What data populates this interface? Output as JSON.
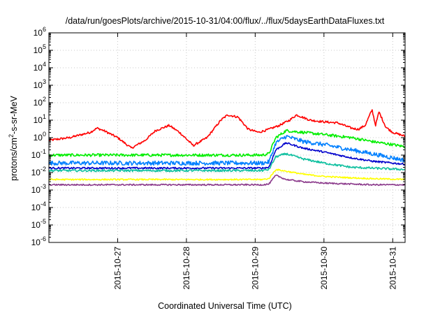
{
  "chart_data": {
    "type": "line",
    "title": "/data/run/goesPlots/archive/2015-10-31/04:00/flux/../flux/5daysEarthDataFluxes.txt",
    "xlabel": "Coordinated Universal Time (UTC)",
    "ylabel_parts": {
      "base": "protons/cm",
      "sup": "2",
      "rest": "-s-sr-MeV"
    },
    "y_scale": "log",
    "ylim": [
      1e-06,
      1000000
    ],
    "xlim": [
      0,
      5.18
    ],
    "grid": true,
    "legend": "none",
    "x_ticks": [
      {
        "x": 1,
        "label": "2015-10-27"
      },
      {
        "x": 2,
        "label": "2015-10-28"
      },
      {
        "x": 3,
        "label": "2015-10-29"
      },
      {
        "x": 4,
        "label": "2015-10-30"
      },
      {
        "x": 5,
        "label": "2015-10-31"
      }
    ],
    "y_ticks": [
      {
        "exp": -6,
        "label": "10",
        "sup": "-6"
      },
      {
        "exp": -5,
        "label": "10",
        "sup": "-5"
      },
      {
        "exp": -4,
        "label": "10",
        "sup": "-4"
      },
      {
        "exp": -3,
        "label": "10",
        "sup": "-3"
      },
      {
        "exp": -2,
        "label": "10",
        "sup": "-2"
      },
      {
        "exp": -1,
        "label": "10",
        "sup": "-1"
      },
      {
        "exp": 0,
        "label": "10",
        "sup": "0"
      },
      {
        "exp": 1,
        "label": "10",
        "sup": "1"
      },
      {
        "exp": 2,
        "label": "10",
        "sup": "2"
      },
      {
        "exp": 3,
        "label": "10",
        "sup": "3"
      },
      {
        "exp": 4,
        "label": "10",
        "sup": "4"
      },
      {
        "exp": 5,
        "label": "10",
        "sup": "5"
      },
      {
        "exp": 6,
        "label": "10",
        "sup": "6"
      }
    ],
    "series": [
      {
        "color": "#ff0000",
        "noise": 0.06,
        "x": [
          0.0,
          0.3,
          0.6,
          0.7,
          0.8,
          1.0,
          1.2,
          1.4,
          1.55,
          1.75,
          1.9,
          2.1,
          2.3,
          2.5,
          2.6,
          2.75,
          2.9,
          3.05,
          3.2,
          3.35,
          3.5,
          3.6,
          3.8,
          4.0,
          4.2,
          4.4,
          4.5,
          4.6,
          4.7,
          4.75,
          4.8,
          4.9,
          5.0,
          5.18
        ],
        "y": [
          0.7,
          1.0,
          2.0,
          3.5,
          2.5,
          1.0,
          0.25,
          0.7,
          2.5,
          5.0,
          2.0,
          0.35,
          1.0,
          10,
          20,
          15,
          3.0,
          2.0,
          3.0,
          5.0,
          10,
          20,
          10,
          8.0,
          7.0,
          3.5,
          3.0,
          5.0,
          40,
          5.0,
          30,
          4.0,
          2.0,
          1.2
        ]
      },
      {
        "color": "#00ee00",
        "noise": 0.08,
        "x": [
          0.0,
          1.0,
          2.0,
          2.5,
          3.0,
          3.1,
          3.2,
          3.3,
          3.45,
          3.7,
          4.0,
          4.4,
          4.7,
          5.0,
          5.18
        ],
        "y": [
          0.1,
          0.1,
          0.1,
          0.1,
          0.1,
          0.1,
          0.12,
          1.0,
          2.5,
          2.0,
          1.5,
          1.0,
          0.6,
          0.4,
          0.3
        ]
      },
      {
        "color": "#0080ff",
        "noise": 0.12,
        "x": [
          0.0,
          1.0,
          2.0,
          2.5,
          3.0,
          3.1,
          3.2,
          3.3,
          3.45,
          3.7,
          4.0,
          4.4,
          4.7,
          5.0,
          5.18
        ],
        "y": [
          0.035,
          0.035,
          0.035,
          0.035,
          0.035,
          0.035,
          0.04,
          0.5,
          1.2,
          0.6,
          0.4,
          0.2,
          0.12,
          0.07,
          0.05
        ]
      },
      {
        "color": "#0000cc",
        "noise": 0.05,
        "x": [
          0.0,
          1.0,
          2.0,
          2.5,
          3.0,
          3.1,
          3.2,
          3.3,
          3.45,
          3.7,
          4.0,
          4.4,
          4.7,
          5.0,
          5.18
        ],
        "y": [
          0.018,
          0.018,
          0.018,
          0.018,
          0.018,
          0.018,
          0.02,
          0.2,
          0.5,
          0.25,
          0.15,
          0.07,
          0.045,
          0.035,
          0.03
        ]
      },
      {
        "color": "#10c0a0",
        "noise": 0.06,
        "x": [
          0.0,
          1.0,
          2.0,
          2.5,
          3.0,
          3.1,
          3.2,
          3.3,
          3.45,
          3.7,
          4.0,
          4.4,
          4.7,
          5.0,
          5.18
        ],
        "y": [
          0.013,
          0.013,
          0.013,
          0.013,
          0.013,
          0.013,
          0.015,
          0.08,
          0.12,
          0.06,
          0.035,
          0.02,
          0.018,
          0.016,
          0.015
        ]
      },
      {
        "color": "#ffff00",
        "noise": 0.04,
        "x": [
          0.0,
          1.0,
          2.0,
          2.5,
          3.0,
          3.1,
          3.2,
          3.3,
          3.45,
          3.7,
          4.0,
          4.4,
          4.7,
          5.0,
          5.18
        ],
        "y": [
          0.004,
          0.004,
          0.004,
          0.004,
          0.004,
          0.004,
          0.0045,
          0.015,
          0.012,
          0.008,
          0.006,
          0.005,
          0.0045,
          0.0042,
          0.004
        ]
      },
      {
        "color": "#8b3a8b",
        "noise": 0.04,
        "x": [
          0.0,
          1.0,
          2.0,
          2.5,
          3.0,
          3.1,
          3.2,
          3.3,
          3.45,
          3.7,
          4.0,
          4.4,
          4.7,
          5.0,
          5.18
        ],
        "y": [
          0.002,
          0.002,
          0.002,
          0.002,
          0.002,
          0.002,
          0.0022,
          0.007,
          0.004,
          0.003,
          0.0025,
          0.0022,
          0.002,
          0.002,
          0.002
        ]
      }
    ]
  }
}
